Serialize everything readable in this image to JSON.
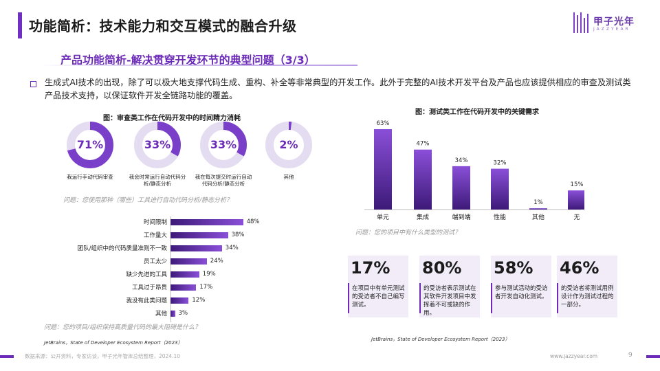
{
  "header": {
    "title": "功能简析：技术能力和交互模式的融合升级",
    "subtitle": "产品功能简析-解决贯穿开发环节的典型问题（3/3）",
    "logo_text": "甲子光年",
    "logo_sub": "JAZZYEAR"
  },
  "intro": {
    "text": "生成式AI技术的出现，除了可以极大地支撑代码生成、重构、补全等非常典型的开发工作。此外于完整的AI技术开发平台及产品也应该提供相应的审查及测试类产品技术支持，以保证软件开发全链路功能的覆盖。"
  },
  "review_chart": {
    "caption": "图：审查类工作在代码开发中的时间精力消耗",
    "donuts": [
      {
        "value": 71,
        "label": "71%",
        "caption": "我运行手动代码审查"
      },
      {
        "value": 33,
        "label": "33%",
        "caption": "我会时常运行自动代码分析/静态分析"
      },
      {
        "value": 33,
        "label": "33%",
        "caption": "我在每次提交时运行自动代码分析/静态分析"
      },
      {
        "value": 2,
        "label": "2%",
        "caption": "其他"
      }
    ],
    "donut_question": "问题：您使用那种（哪些）工具进行自动代码分析/静态分析？",
    "bars": [
      {
        "label": "时间限制",
        "value": 48,
        "text": "48%"
      },
      {
        "label": "工作量大",
        "value": 38,
        "text": "38%"
      },
      {
        "label": "团队/组织中的代码质量准则不一致",
        "value": 34,
        "text": "34%"
      },
      {
        "label": "员工太少",
        "value": 24,
        "text": "24%"
      },
      {
        "label": "缺少先进的工具",
        "value": 19,
        "text": "19%"
      },
      {
        "label": "工具过于昂贵",
        "value": 17,
        "text": "17%"
      },
      {
        "label": "我没有此类问题",
        "value": 12,
        "text": "12%"
      },
      {
        "label": "其他",
        "value": 3,
        "text": "3%"
      }
    ],
    "bar_question": "问题：您的项目/组织保持高质量代码的最大阻碍是什么？",
    "source": "JetBrains，State of Developer Ecosystem Report（2023）"
  },
  "chart_data": [
    {
      "type": "pie",
      "title": "图：审查类工作在代码开发中的时间精力消耗",
      "categories": [
        "我运行手动代码审查",
        "我会时常运行自动代码分析/静态分析",
        "我在每次提交时运行自动代码分析/静态分析",
        "其他"
      ],
      "values": [
        71,
        33,
        33,
        2
      ]
    },
    {
      "type": "bar",
      "title": "",
      "categories": [
        "时间限制",
        "工作量大",
        "团队/组织中的代码质量准则不一致",
        "员工太少",
        "缺少先进的工具",
        "工具过于昂贵",
        "我没有此类问题",
        "其他"
      ],
      "values": [
        48,
        38,
        34,
        24,
        19,
        17,
        12,
        3
      ],
      "xlim": [
        0,
        55
      ]
    },
    {
      "type": "bar",
      "title": "图：测试类工作在代码开发中的关键需求",
      "categories": [
        "单元",
        "集成",
        "端到端",
        "性能",
        "其他",
        "无"
      ],
      "values": [
        63,
        47,
        34,
        32,
        1,
        15
      ],
      "ylim": [
        0,
        70
      ]
    }
  ],
  "test_chart": {
    "caption": "图：测试类工作在代码开发中的关键需求",
    "question": "问题：您的项目中有什么类型的测试？",
    "source": "JetBrains，State of Developer Ecosystem Report（2023）",
    "cards": [
      {
        "num": "17%",
        "text": "在项目中有单元测试的受访者不自己编写测试。"
      },
      {
        "num": "80%",
        "text": "的受访者表示测试在其软件开发项目中发挥着不可或缺的作用。"
      },
      {
        "num": "58%",
        "text": "参与测试活动的受访者开发自动化测试。"
      },
      {
        "num": "46%",
        "text": "的受访者将测试用例设计作为测试过程的一部分。"
      }
    ]
  },
  "footer": {
    "source": "数据来源：公开资料，专家访谈，甲子光年智库总结整理，2024.10",
    "url": "www.jazzyear.com",
    "page": "9"
  },
  "colors": {
    "accent": "#6b2bb8",
    "bar_dark": "#3d1a78",
    "bar_light": "#8a4fd8",
    "card_bg": "#f1ecf8"
  }
}
